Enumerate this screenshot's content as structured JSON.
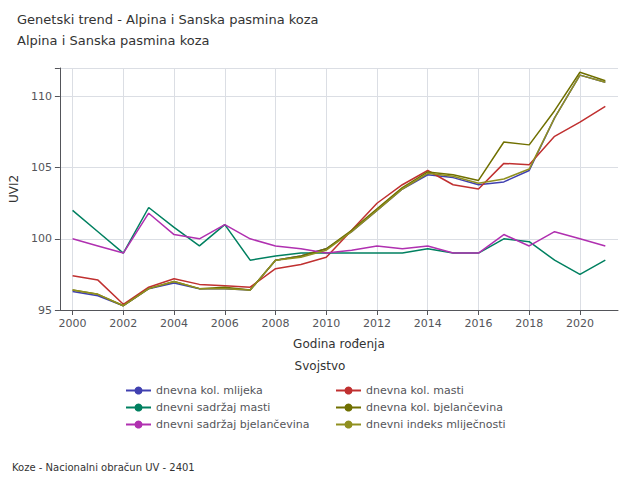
{
  "chart_data": {
    "type": "line",
    "title": "Genetski trend - Alpina i Sanska pasmina koza",
    "subtitle": "Alpina i Sanska pasmina koza",
    "xlabel": "Godina rođenja",
    "ylabel": "UVI2",
    "footnote": "Koze - Nacionalni obračun UV - 2401",
    "legend_title": "Svojstvo",
    "legend": "bottom",
    "grid": true,
    "xlim": [
      1999.5,
      2021.5
    ],
    "ylim": [
      95,
      112
    ],
    "xticks": [
      2000,
      2002,
      2004,
      2006,
      2008,
      2010,
      2012,
      2014,
      2016,
      2018,
      2020
    ],
    "yticks": [
      95,
      100,
      105,
      110
    ],
    "x": [
      2000,
      2001,
      2002,
      2003,
      2004,
      2005,
      2006,
      2007,
      2008,
      2009,
      2010,
      2011,
      2012,
      2013,
      2014,
      2015,
      2016,
      2017,
      2018,
      2019,
      2020,
      2021
    ],
    "series": [
      {
        "name": "dnevna kol. mlijeka",
        "color": "#4040b0",
        "values": [
          96.3,
          96.0,
          95.3,
          96.5,
          96.9,
          96.5,
          96.5,
          96.4,
          98.5,
          98.8,
          99.3,
          100.5,
          102.0,
          103.5,
          104.5,
          104.3,
          103.8,
          104.0,
          104.8,
          108.5,
          111.5,
          111.0
        ]
      },
      {
        "name": "dnevna kol. masti",
        "color": "#c03030",
        "values": [
          97.4,
          97.1,
          95.4,
          96.6,
          97.2,
          96.8,
          96.7,
          96.6,
          97.9,
          98.2,
          98.7,
          100.6,
          102.5,
          103.8,
          104.8,
          103.8,
          103.5,
          105.3,
          105.2,
          107.2,
          108.2,
          109.3
        ]
      },
      {
        "name": "dnevni sadržaj masti",
        "color": "#008060",
        "values": [
          102.0,
          100.5,
          99.0,
          102.2,
          100.8,
          99.5,
          101.0,
          98.5,
          98.8,
          99.0,
          99.0,
          99.0,
          99.0,
          99.0,
          99.3,
          99.0,
          99.0,
          100.0,
          99.8,
          98.5,
          97.5,
          98.5
        ]
      },
      {
        "name": "dnevna kol. bjelančevina",
        "color": "#707000",
        "values": [
          96.4,
          96.1,
          95.3,
          96.5,
          97.0,
          96.5,
          96.6,
          96.4,
          98.5,
          98.8,
          99.3,
          100.6,
          102.1,
          103.6,
          104.7,
          104.5,
          104.1,
          106.8,
          106.6,
          109.0,
          111.7,
          111.1
        ]
      },
      {
        "name": "dnevni sadržaj bjelančevina",
        "color": "#b030b0",
        "values": [
          100.0,
          99.5,
          99.0,
          101.8,
          100.3,
          100.0,
          101.0,
          100.0,
          99.5,
          99.3,
          99.0,
          99.2,
          99.5,
          99.3,
          99.5,
          99.0,
          99.0,
          100.3,
          99.5,
          100.5,
          100.0,
          99.5
        ]
      },
      {
        "name": "dnevni indeks mliječnosti",
        "color": "#909020",
        "values": [
          96.4,
          96.1,
          95.3,
          96.5,
          97.0,
          96.5,
          96.5,
          96.4,
          98.5,
          98.7,
          99.2,
          100.5,
          102.0,
          103.5,
          104.6,
          104.4,
          103.9,
          104.2,
          104.9,
          108.5,
          111.5,
          111.0
        ]
      }
    ]
  }
}
